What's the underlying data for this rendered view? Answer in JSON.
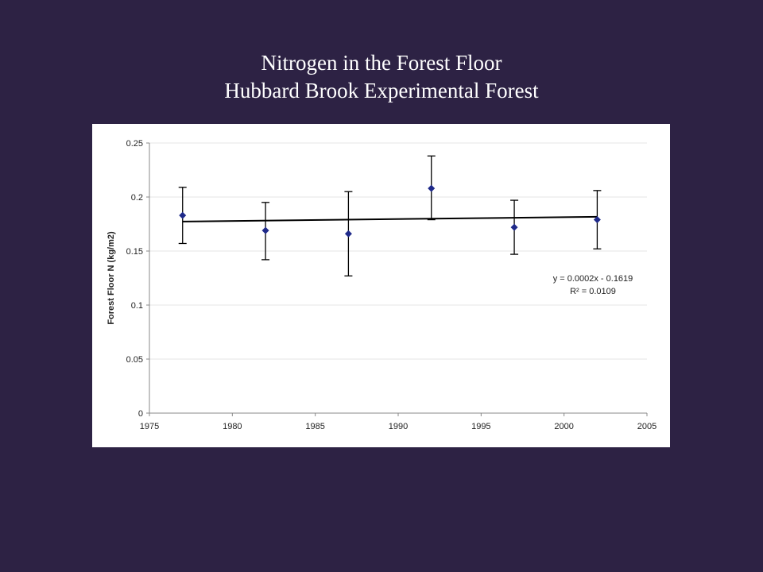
{
  "slide": {
    "title_line1": "Nitrogen in the Forest Floor",
    "title_line2": "Hubbard Brook Experimental Forest",
    "background_color": "#2d2244"
  },
  "chart_data": {
    "type": "scatter",
    "ylabel": "Forest Floor N (kg/m2)",
    "xlabel": "",
    "xlim": [
      1975,
      2005
    ],
    "ylim": [
      0,
      0.25
    ],
    "x_ticks": [
      "1975",
      "1980",
      "1985",
      "1990",
      "1995",
      "2000",
      "2005"
    ],
    "y_ticks": [
      "0",
      "0.05",
      "0.1",
      "0.15",
      "0.2",
      "0.25"
    ],
    "grid": "horizontal",
    "legend": "none",
    "marker_color": "#1f2a8a",
    "marker": "diamond",
    "series": [
      {
        "x": [
          1977,
          1982,
          1987,
          1992,
          1997,
          2002
        ],
        "y": [
          0.183,
          0.169,
          0.166,
          0.208,
          0.172,
          0.179
        ],
        "error_low": [
          0.157,
          0.142,
          0.127,
          0.179,
          0.147,
          0.152
        ],
        "error_high": [
          0.209,
          0.195,
          0.205,
          0.238,
          0.197,
          0.206
        ]
      }
    ],
    "trendline": {
      "slope": 0.0002,
      "intercept": -0.1619,
      "x_range": [
        1977,
        2002
      ],
      "equation": "y = 0.0002x - 0.1619",
      "r_squared": "R² = 0.0109"
    }
  }
}
